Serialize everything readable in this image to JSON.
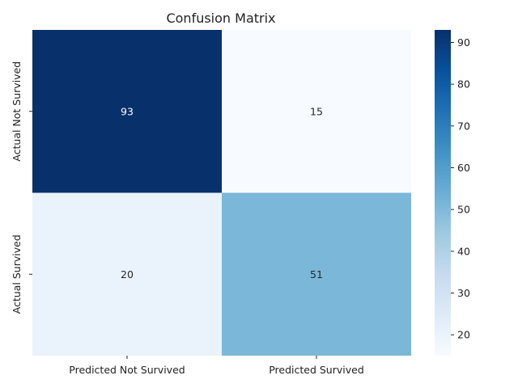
{
  "chart_data": {
    "type": "heatmap",
    "title": "Confusion Matrix",
    "x_categories": [
      "Predicted Not Survived",
      "Predicted Survived"
    ],
    "y_categories": [
      "Actual Not Survived",
      "Actual Survived"
    ],
    "values": [
      [
        93,
        15
      ],
      [
        20,
        51
      ]
    ],
    "annotations": [
      "93",
      "15",
      "20",
      "51"
    ],
    "colormap": "Blues",
    "colorbar": {
      "range": [
        15,
        93
      ],
      "ticks": [
        20,
        30,
        40,
        50,
        60,
        70,
        80,
        90
      ],
      "tick_labels": [
        "20",
        "30",
        "40",
        "50",
        "60",
        "70",
        "80",
        "90"
      ]
    },
    "grid": false
  }
}
